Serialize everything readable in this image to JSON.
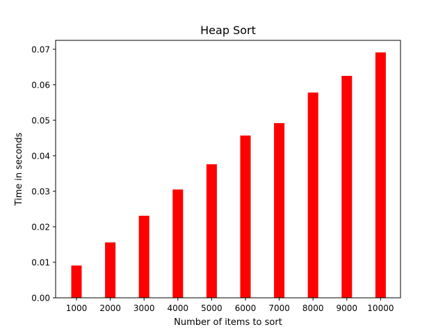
{
  "chart_data": {
    "type": "bar",
    "title": "Heap Sort",
    "xlabel": "Number of items to sort",
    "ylabel": "Time in seconds",
    "categories": [
      "1000",
      "2000",
      "3000",
      "4000",
      "5000",
      "6000",
      "7000",
      "8000",
      "9000",
      "10000"
    ],
    "values": [
      0.0091,
      0.0156,
      0.0231,
      0.0305,
      0.0376,
      0.0457,
      0.0492,
      0.0578,
      0.0625,
      0.0691
    ],
    "ylim": [
      0,
      0.0725
    ],
    "yticks": [
      "0.00",
      "0.01",
      "0.02",
      "0.03",
      "0.04",
      "0.05",
      "0.06",
      "0.07"
    ],
    "ytick_values": [
      0,
      0.01,
      0.02,
      0.03,
      0.04,
      0.05,
      0.06,
      0.07
    ],
    "grid": false,
    "legend": "none",
    "bar_color": "#ff0000"
  }
}
